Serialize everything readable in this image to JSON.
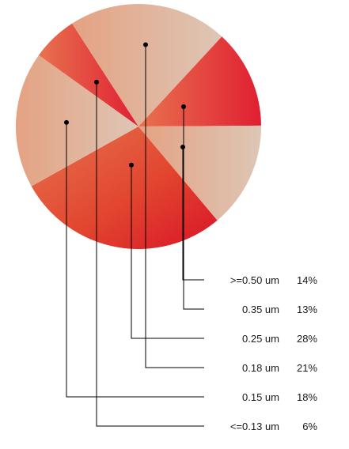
{
  "chart_data": {
    "type": "pie",
    "title": "",
    "slices": [
      {
        "label": ">=0.50 um",
        "pct_label": "14%",
        "value": 14
      },
      {
        "label": "0.35 um",
        "pct_label": "13%",
        "value": 13
      },
      {
        "label": "0.25 um",
        "pct_label": "28%",
        "value": 28
      },
      {
        "label": "0.18 um",
        "pct_label": "21%",
        "value": 21
      },
      {
        "label": "0.15 um",
        "pct_label": "18%",
        "value": 18
      },
      {
        "label": "<=0.13 um",
        "pct_label": "6%",
        "value": 6
      }
    ],
    "colors": {
      "dark_red": "#e02030",
      "mid_red": "#e2553c",
      "salmon": "#e78c6f",
      "light_tan": "#dcc0ad",
      "leader": "#000000"
    }
  }
}
